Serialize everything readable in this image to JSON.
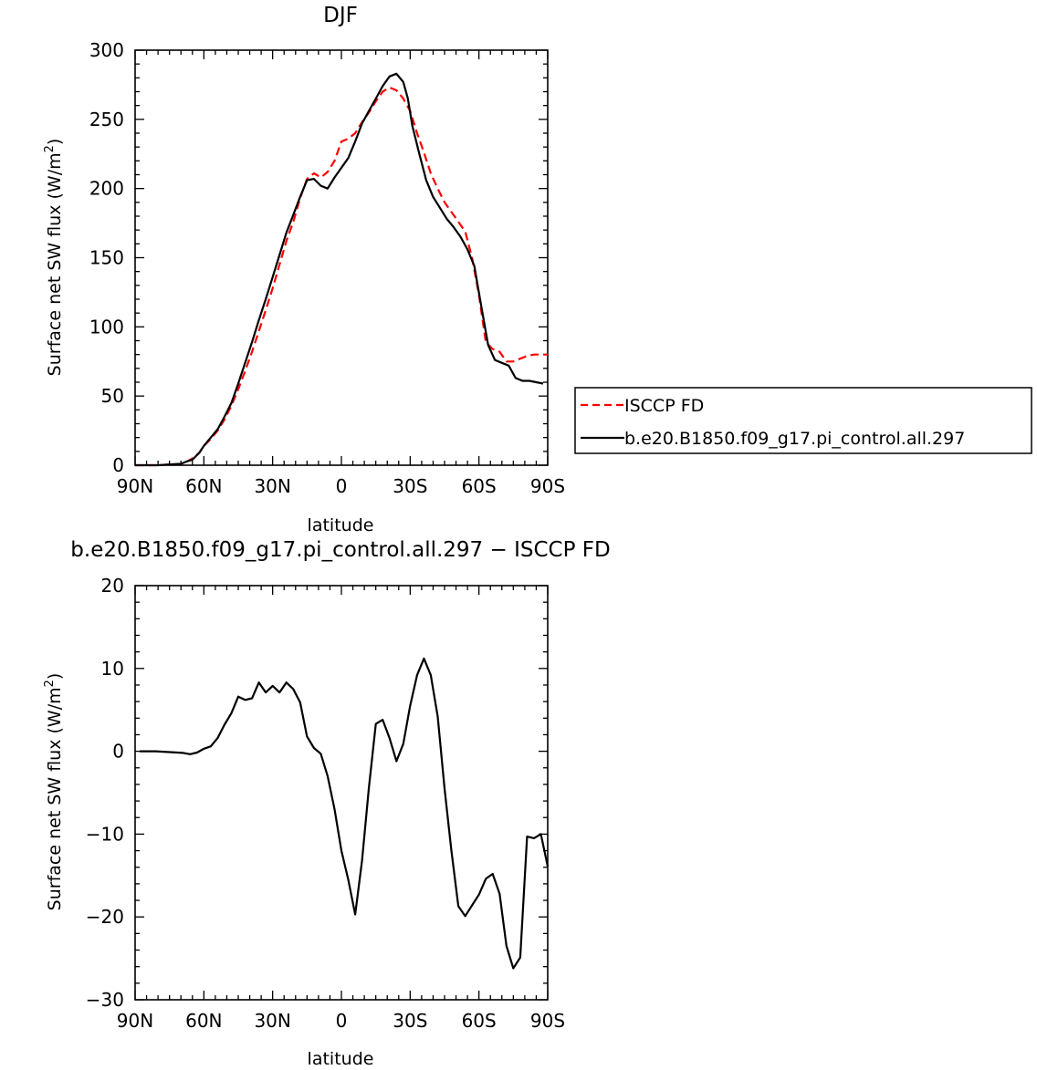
{
  "chart_data": [
    {
      "type": "line",
      "title": "DJF",
      "xlabel": "latitude",
      "ylabel": "Surface net SW flux (W/m",
      "ylabel_sup": "2",
      "ylabel_end": ")",
      "xlim": [
        -90,
        90
      ],
      "ylim": [
        0,
        300
      ],
      "xticks": [
        -90,
        -60,
        -30,
        0,
        30,
        60,
        90
      ],
      "xtick_labels": [
        "90N",
        "60N",
        "30N",
        "0",
        "30S",
        "60S",
        "90S"
      ],
      "yticks": [
        0,
        50,
        100,
        150,
        200,
        250,
        300
      ],
      "ytick_labels": [
        "0",
        "50",
        "100",
        "150",
        "200",
        "250",
        "300"
      ],
      "grid": false,
      "legend_position": "right",
      "series": [
        {
          "name": "ISCCP FD",
          "color": "#ff0000",
          "dash": true,
          "x": [
            -90,
            -85,
            -80,
            -75,
            -70,
            -67,
            -65,
            -62,
            -60,
            -57,
            -54,
            -51,
            -48,
            -45,
            -42,
            -39,
            -36,
            -33,
            -30,
            -27,
            -24,
            -21,
            -18,
            -15,
            -12,
            -9,
            -6,
            -3,
            0,
            3,
            6,
            9,
            12,
            15,
            18,
            21,
            24,
            27,
            30,
            33,
            36,
            39,
            42,
            45,
            48,
            51,
            54,
            57,
            60,
            63,
            66,
            69,
            72,
            75,
            78,
            81,
            84,
            87,
            90
          ],
          "y": [
            0,
            0,
            0,
            0.5,
            1,
            3,
            5,
            9,
            14,
            19,
            25,
            33,
            43,
            55,
            68,
            82,
            97,
            112,
            128,
            145,
            162,
            176,
            193,
            207,
            211,
            208,
            212,
            220,
            234,
            236,
            240,
            248,
            255,
            263,
            270,
            273,
            271,
            265,
            256,
            240,
            226,
            211,
            200,
            190,
            183,
            176,
            169,
            150,
            123,
            89,
            84,
            82,
            75,
            75,
            77,
            79,
            80,
            80,
            80
          ]
        },
        {
          "name": "b.e20.B1850.f09_g17.pi_control.all.297",
          "color": "#000000",
          "dash": false,
          "x": [
            -90,
            -85,
            -80,
            -75,
            -70,
            -67,
            -65,
            -62,
            -60,
            -57,
            -54,
            -51,
            -48,
            -45,
            -42,
            -39,
            -36,
            -33,
            -30,
            -27,
            -24,
            -21,
            -18,
            -15,
            -12,
            -9,
            -6,
            -3,
            0,
            3,
            6,
            9,
            12,
            15,
            18,
            21,
            24,
            27,
            29,
            31,
            34,
            37,
            40,
            43,
            46,
            49,
            52,
            55,
            58,
            61,
            64,
            67,
            70,
            73,
            76,
            79,
            82,
            85,
            88
          ],
          "y": [
            0,
            0,
            0,
            0.5,
            1,
            3,
            4,
            9,
            14,
            20,
            26,
            35,
            45,
            59,
            74,
            89,
            105,
            120,
            136,
            152,
            168,
            181,
            194,
            206,
            207,
            202,
            200,
            208,
            215,
            222,
            234,
            247,
            256,
            265,
            274,
            281,
            283,
            277,
            265,
            245,
            225,
            206,
            194,
            186,
            178,
            172,
            165,
            156,
            144,
            115,
            87,
            76,
            74,
            72,
            63,
            61,
            61,
            60,
            59
          ]
        }
      ]
    },
    {
      "type": "line",
      "title": "b.e20.B1850.f09_g17.pi_control.all.297 − ISCCP FD",
      "xlabel": "latitude",
      "ylabel": "Surface net SW flux (W/m",
      "ylabel_sup": "2",
      "ylabel_end": ")",
      "xlim": [
        -90,
        90
      ],
      "ylim": [
        -30,
        20
      ],
      "xticks": [
        -90,
        -60,
        -30,
        0,
        30,
        60,
        90
      ],
      "xtick_labels": [
        "90N",
        "60N",
        "30N",
        "0",
        "30S",
        "60S",
        "90S"
      ],
      "yticks": [
        -30,
        -20,
        -10,
        0,
        10,
        20
      ],
      "ytick_labels": [
        "−30",
        "−20",
        "−10",
        "0",
        "10",
        "20"
      ],
      "grid": false,
      "series": [
        {
          "color": "#000000",
          "dash": false,
          "x": [
            -88,
            -81,
            -75,
            -69,
            -66,
            -63,
            -60,
            -57,
            -54,
            -51,
            -48,
            -45,
            -42,
            -39,
            -36,
            -33,
            -30,
            -27,
            -24,
            -21,
            -18,
            -15,
            -12,
            -9,
            -6,
            -3,
            0,
            3,
            6,
            9,
            12,
            15,
            18,
            21,
            24,
            27,
            30,
            33,
            36,
            39,
            42,
            45,
            48,
            51,
            54,
            57,
            60,
            63,
            66,
            69,
            72,
            75,
            78,
            81,
            84,
            87,
            90
          ],
          "y": [
            0,
            0,
            -0.1,
            -0.2,
            -0.35,
            -0.15,
            0.3,
            0.6,
            1.6,
            3.2,
            4.6,
            6.6,
            6.2,
            6.4,
            8.3,
            7.1,
            7.9,
            7.1,
            8.3,
            7.5,
            5.9,
            1.8,
            0.4,
            -0.3,
            -3.0,
            -7.0,
            -12.0,
            -15.5,
            -19.7,
            -13.2,
            -4.4,
            3.3,
            3.8,
            1.6,
            -1.2,
            0.9,
            5.5,
            9.2,
            11.2,
            9.2,
            4.2,
            -4.5,
            -12.0,
            -18.7,
            -19.9,
            -18.6,
            -17.3,
            -15.4,
            -14.8,
            -17.2,
            -23.5,
            -26.2,
            -24.9,
            -10.3,
            -10.5,
            -10.0,
            -13.9
          ]
        }
      ]
    }
  ]
}
